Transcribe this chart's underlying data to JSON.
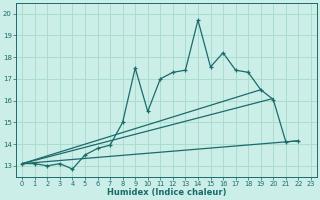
{
  "xlabel": "Humidex (Indice chaleur)",
  "bg_color": "#cceee8",
  "grid_color": "#aaddcc",
  "line_color": "#1a6b6b",
  "xlim": [
    -0.5,
    23.5
  ],
  "ylim": [
    12.5,
    20.5
  ],
  "yticks": [
    13,
    14,
    15,
    16,
    17,
    18,
    19,
    20
  ],
  "xticks": [
    0,
    1,
    2,
    3,
    4,
    5,
    6,
    7,
    8,
    9,
    10,
    11,
    12,
    13,
    14,
    15,
    16,
    17,
    18,
    19,
    20,
    21,
    22,
    23
  ],
  "series1_x": [
    0,
    1,
    2,
    3,
    4,
    5,
    6,
    7,
    8,
    9,
    10,
    11,
    12,
    13,
    14,
    15,
    16,
    17,
    18,
    19,
    20,
    21,
    22
  ],
  "series1_y": [
    13.1,
    13.1,
    13.0,
    13.1,
    12.85,
    13.5,
    13.8,
    13.95,
    15.0,
    17.5,
    15.5,
    17.0,
    17.3,
    17.4,
    19.7,
    17.55,
    18.2,
    17.4,
    17.3,
    16.5,
    16.05,
    14.1,
    14.15
  ],
  "series2_x": [
    0,
    19
  ],
  "series2_y": [
    13.1,
    16.5
  ],
  "series3_x": [
    0,
    20
  ],
  "series3_y": [
    13.1,
    16.1
  ],
  "series4_x": [
    0,
    22
  ],
  "series4_y": [
    13.1,
    14.15
  ]
}
